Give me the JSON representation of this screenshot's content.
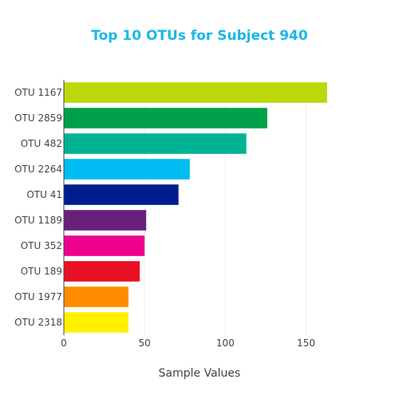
{
  "chart_data": {
    "type": "bar",
    "orientation": "horizontal",
    "title": "Top 10 OTUs for Subject 940",
    "title_color": "#1ab8e8",
    "xlabel": "Sample Values",
    "ylabel": "",
    "xlim": [
      0,
      168
    ],
    "x_ticks": [
      0,
      50,
      100,
      150
    ],
    "grid": true,
    "categories": [
      "OTU 1167",
      "OTU 2859",
      "OTU 482",
      "OTU 2264",
      "OTU 41",
      "OTU 1189",
      "OTU 352",
      "OTU 189",
      "OTU 1977",
      "OTU 2318"
    ],
    "values": [
      163,
      126,
      113,
      78,
      71,
      51,
      50,
      47,
      40,
      40
    ],
    "colors": [
      "#bcd80a",
      "#00a04a",
      "#00b395",
      "#00bcf2",
      "#001d8f",
      "#68217a",
      "#ec008c",
      "#e81123",
      "#ff8c00",
      "#fff100"
    ]
  }
}
